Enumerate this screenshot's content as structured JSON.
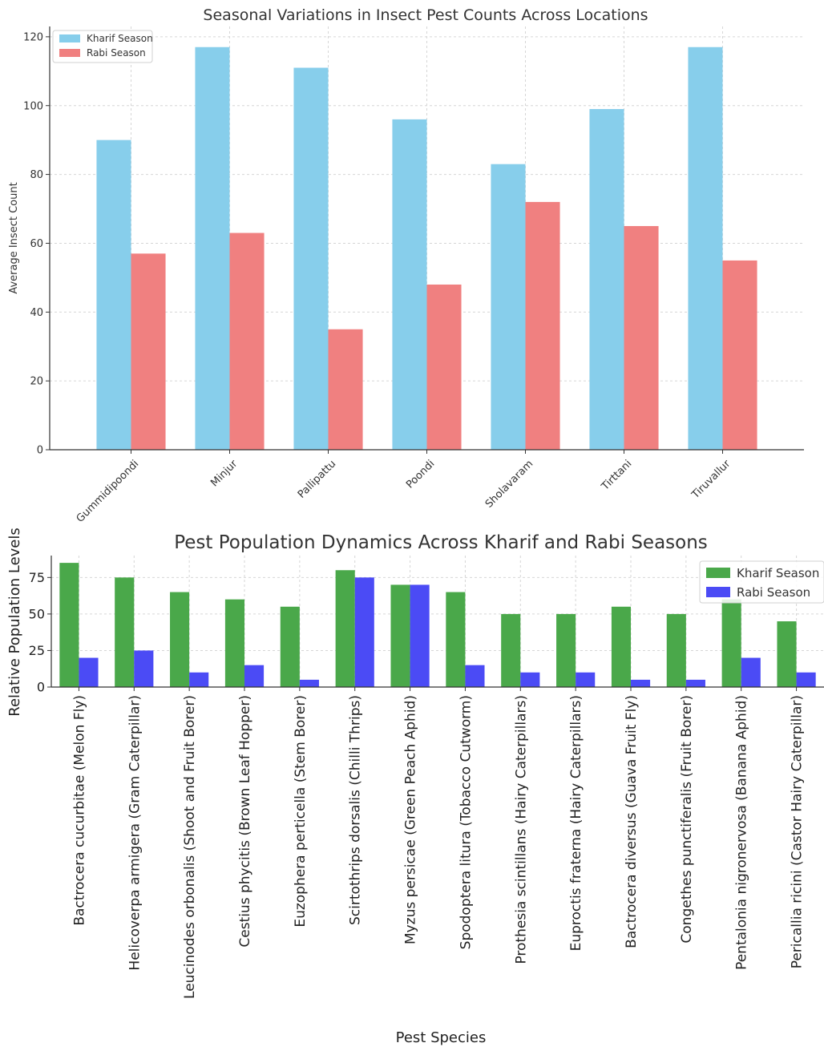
{
  "chart_data": [
    {
      "type": "bar",
      "title": "Seasonal Variations in Insect Pest Counts Across Locations",
      "xlabel": "",
      "ylabel": "Average Insect Count",
      "ylim": [
        0,
        123
      ],
      "yticks": [
        0,
        20,
        40,
        60,
        80,
        100,
        120
      ],
      "grid": true,
      "legend_position": "top-left",
      "categories": [
        "Gummidipoondi",
        "Minjur",
        "Pallipattu",
        "Poondi",
        "Sholavaram",
        "Tirttani",
        "Tiruvallur"
      ],
      "series": [
        {
          "name": "Kharif Season",
          "color": "#87ceeb",
          "values": [
            90,
            117,
            111,
            96,
            83,
            99,
            117
          ]
        },
        {
          "name": "Rabi Season",
          "color": "#f08080",
          "values": [
            57,
            63,
            35,
            48,
            72,
            65,
            55
          ]
        }
      ]
    },
    {
      "type": "bar",
      "title": "Pest Population Dynamics Across Kharif and Rabi Seasons",
      "xlabel": "Pest Species",
      "ylabel": "Relative Population Levels",
      "ylim": [
        0,
        90
      ],
      "yticks": [
        0,
        25,
        50,
        75
      ],
      "grid": true,
      "legend_position": "top-right",
      "categories": [
        "Bactrocera cucurbitae (Melon Fly)",
        "Helicoverpa armigera (Gram Caterpillar)",
        "Leucinodes orbonalis (Shoot and Fruit Borer)",
        "Cestius phycitis (Brown Leaf Hopper)",
        "Euzophera perticella (Stem Borer)",
        "Scirtothrips dorsalis (Chilli Thrips)",
        "Myzus persicae (Green Peach Aphid)",
        "Spodoptera litura (Tobacco Cutworm)",
        "Prothesia scintillans (Hairy Caterpillars)",
        "Euproctis fraterna (Hairy Caterpillars)",
        "Bactrocera diversus (Guava Fruit Fly)",
        "Congethes punctiferalis (Fruit Borer)",
        "Pentalonia nigronervosa (Banana Aphid)",
        "Pericallia ricini (Castor Hairy Caterpillar)"
      ],
      "series": [
        {
          "name": "Kharif Season",
          "color": "#4aa84a",
          "values": [
            85,
            75,
            65,
            60,
            55,
            80,
            70,
            65,
            50,
            50,
            55,
            50,
            60,
            45
          ]
        },
        {
          "name": "Rabi Season",
          "color": "#4b4bf5",
          "values": [
            20,
            25,
            10,
            15,
            5,
            75,
            70,
            15,
            10,
            10,
            5,
            5,
            20,
            10
          ]
        }
      ]
    }
  ]
}
